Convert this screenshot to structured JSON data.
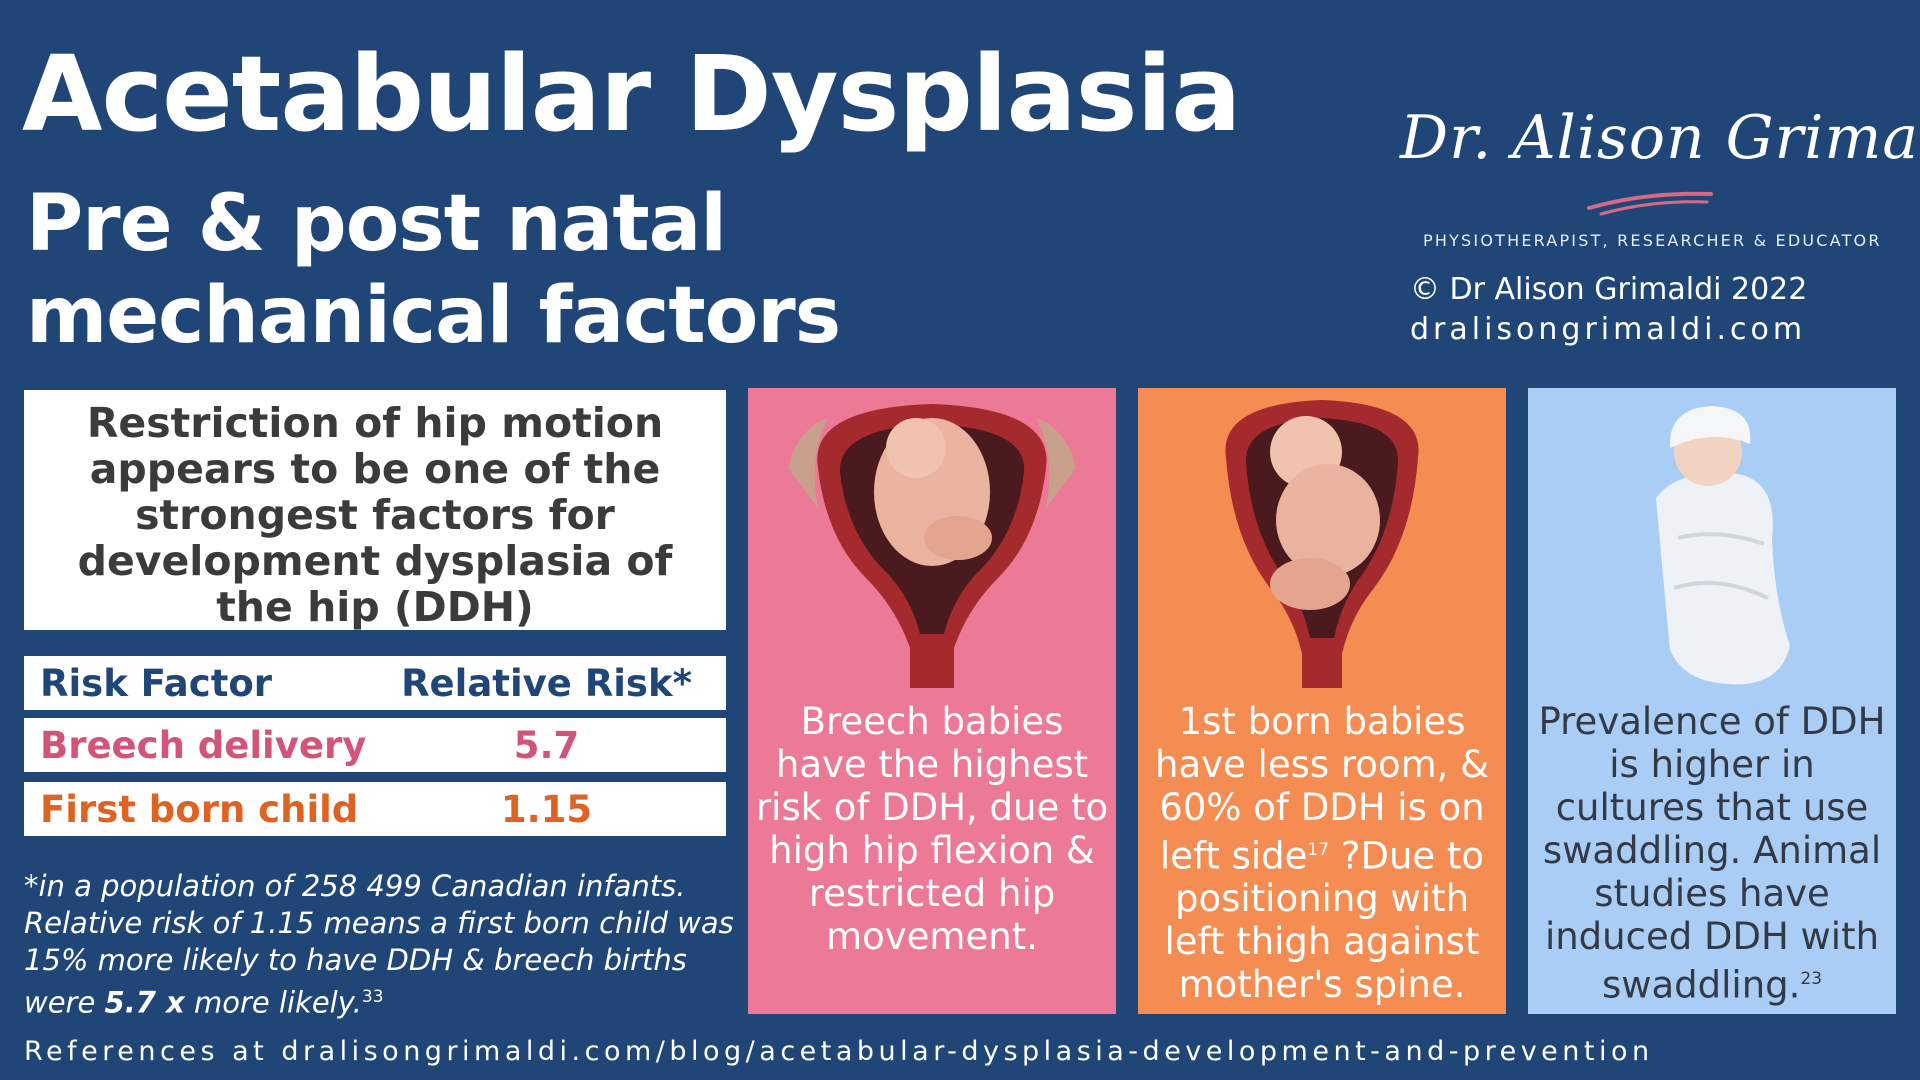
{
  "title": {
    "main": "Acetabular Dysplasia",
    "sub_line1": "Pre & post natal",
    "sub_line2": "mechanical factors"
  },
  "brand": {
    "signature": "Dr. Alison Grimaldi",
    "tagline": "PHYSIOTHERAPIST, RESEARCHER & EDUCATOR",
    "copyright": "© Dr Alison Grimaldi 2022",
    "website": "dralisongrimaldi.com",
    "swoosh_color": "#d46a86"
  },
  "intro": {
    "text": "Restriction of hip motion appears to be one of the strongest factors for development dysplasia of the hip (DDH)"
  },
  "risk_table": {
    "header": {
      "factor": "Risk Factor",
      "risk": "Relative Risk*"
    },
    "rows": [
      {
        "factor": "Breech delivery",
        "risk": "5.7",
        "color": "#d35476"
      },
      {
        "factor": "First born child",
        "risk": "1.15",
        "color": "#de6221"
      }
    ]
  },
  "footnote": {
    "text_before": "*in a population of 258 499 Canadian infants. Relative risk of 1.15 means a first born child was 15% more likely to have DDH & breech births were ",
    "bold": "5.7 x",
    "text_after": " more likely.",
    "ref": "33"
  },
  "panels": [
    {
      "id": "breech",
      "color": "#ec7a97",
      "icon": "breech-fetus-model",
      "text": "Breech babies have the highest risk of DDH, due to high hip flexion & restricted hip movement.",
      "ref": ""
    },
    {
      "id": "first-born",
      "color": "#f58c52",
      "icon": "first-born-fetus-model",
      "text_before": "1st born babies have less room, & 60% of DDH is on left side",
      "ref": "17",
      "text_after": " ?Due to positioning with left thigh against mother's spine."
    },
    {
      "id": "swaddling",
      "color": "#a9cdf4",
      "icon": "swaddled-baby",
      "text": "Prevalence of DDH is higher in cultures that use swaddling. Animal studies have induced DDH with swaddling.",
      "ref": "23"
    }
  ],
  "references": "References at dralisongrimaldi.com/blog/acetabular-dysplasia-development-and-prevention",
  "colors": {
    "background": "#1f4677",
    "heading_navy": "#1f4677",
    "breech_pink": "#d35476",
    "first_born_orange": "#de6221"
  }
}
